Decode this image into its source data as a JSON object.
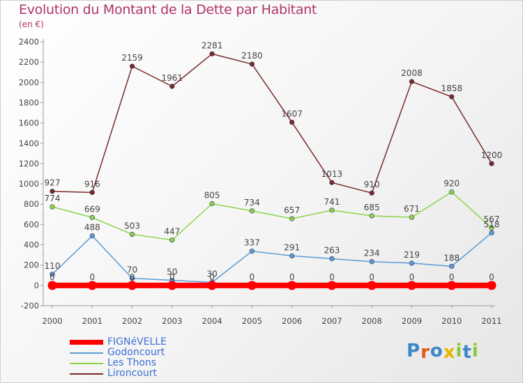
{
  "title": "Evolution du Montant de la Dette par Habitant",
  "subtitle": "(en €)",
  "chart_data": {
    "type": "line",
    "title": "Evolution du Montant de la Dette par Habitant",
    "ylabel": "(en €)",
    "xlabel": "",
    "x": [
      "2000",
      "2001",
      "2002",
      "2003",
      "2004",
      "2005",
      "2006",
      "2007",
      "2008",
      "2009",
      "2010",
      "2011"
    ],
    "ylim": [
      -200,
      2400
    ],
    "yticks": [
      -200,
      0,
      200,
      400,
      600,
      800,
      1000,
      1200,
      1400,
      1600,
      1800,
      2000,
      2200,
      2400
    ],
    "grid": false,
    "legend_position": "bottom-left",
    "series": [
      {
        "name": "FIGNéVELLE",
        "color": "#ff0000",
        "values": [
          0,
          0,
          0,
          0,
          0,
          0,
          0,
          0,
          0,
          0,
          0,
          0
        ],
        "labels": [
          "0",
          "0",
          "0",
          "0",
          "0",
          "0",
          "0",
          "0",
          "0",
          "0",
          "0",
          "0"
        ]
      },
      {
        "name": "Godoncourt",
        "color": "#5b9bd5",
        "values": [
          110,
          488,
          70,
          50,
          30,
          337,
          291,
          263,
          234,
          219,
          188,
          518
        ],
        "labels": [
          "110",
          "488",
          "70",
          "50",
          "30",
          "337",
          "291",
          "263",
          "234",
          "219",
          "188",
          "518"
        ]
      },
      {
        "name": "Les Thons",
        "color": "#8cd44a",
        "values": [
          774,
          669,
          503,
          447,
          805,
          734,
          657,
          741,
          685,
          671,
          920,
          567
        ],
        "labels": [
          "774",
          "669",
          "503",
          "447",
          "805",
          "734",
          "657",
          "741",
          "685",
          "671",
          "920",
          "567"
        ]
      },
      {
        "name": "Lironcourt",
        "color": "#7a2a2a",
        "values": [
          927,
          916,
          2159,
          1961,
          2281,
          2180,
          1607,
          1013,
          910,
          2008,
          1858,
          1200
        ],
        "labels": [
          "927",
          "916",
          "2159",
          "1961",
          "2281",
          "2180",
          "1607",
          "1013",
          "910",
          "2008",
          "1858",
          "1200"
        ]
      }
    ]
  },
  "logo": {
    "letters": [
      "P",
      "r",
      "o",
      "x",
      "i",
      "t",
      "i"
    ],
    "colors": [
      "#3a87c9",
      "#e2591a",
      "#3a87c9",
      "#e6b800",
      "#8cc63f",
      "#3a87c9",
      "#8cc63f"
    ]
  }
}
